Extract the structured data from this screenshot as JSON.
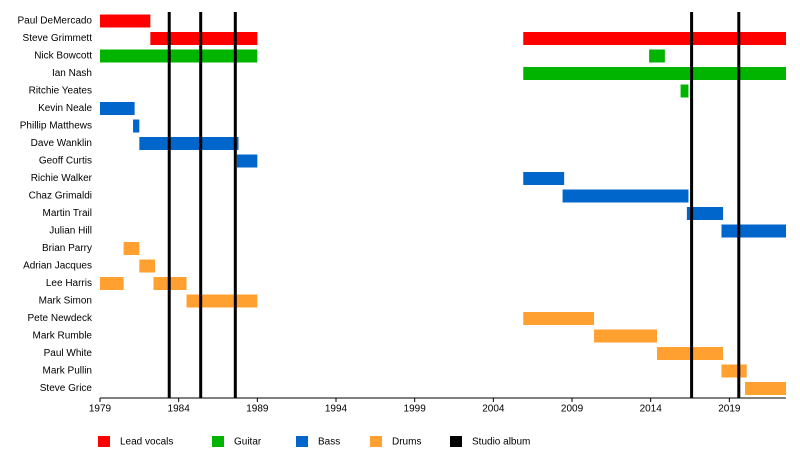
{
  "chart_data": {
    "type": "timeline",
    "categories": [
      "Paul DeMercado",
      "Steve Grimmett",
      "Nick Bowcott",
      "Ian Nash",
      "Ritchie Yeates",
      "Kevin Neale",
      "Phillip Matthews",
      "Dave Wanklin",
      "Geoff Curtis",
      "Richie Walker",
      "Chaz Grimaldi",
      "Martin Trail",
      "Julian Hill",
      "Brian Parry",
      "Adrian Jacques",
      "Lee Harris",
      "Mark Simon",
      "Pete Newdeck",
      "Mark Rumble",
      "Paul White",
      "Mark Pullin",
      "Steve Grice"
    ],
    "series": [
      {
        "name": "Lead vocals",
        "color": "#ff0000",
        "values": [
          [
            [
              1979,
              1982.2
            ]
          ],
          [
            [
              1982.2,
              1989.0
            ],
            [
              2005.9,
              2022.6
            ]
          ],
          null,
          null,
          null,
          null,
          null,
          null,
          null,
          null,
          null,
          null,
          null,
          null,
          null,
          null,
          null,
          null,
          null,
          null,
          null,
          null
        ]
      },
      {
        "name": "Guitar",
        "color": "#00b400",
        "values": [
          null,
          null,
          [
            [
              1979,
              1989.0
            ],
            [
              2013.9,
              2014.9
            ]
          ],
          [
            [
              2005.9,
              2022.6
            ]
          ],
          [
            [
              2015.9,
              2016.4
            ]
          ],
          null,
          null,
          null,
          null,
          null,
          null,
          null,
          null,
          null,
          null,
          null,
          null,
          null,
          null,
          null,
          null,
          null
        ]
      },
      {
        "name": "Bass",
        "color": "#0066cc",
        "values": [
          null,
          null,
          null,
          null,
          null,
          [
            [
              1979,
              1981.2
            ]
          ],
          [
            [
              1981.1,
              1981.5
            ]
          ],
          [
            [
              1981.5,
              1987.8
            ]
          ],
          [
            [
              1987.7,
              1989.0
            ]
          ],
          [
            [
              2005.9,
              2008.5
            ]
          ],
          [
            [
              2008.4,
              2016.4
            ]
          ],
          [
            [
              2016.3,
              2018.6
            ]
          ],
          [
            [
              2018.5,
              2022.6
            ]
          ],
          null,
          null,
          null,
          null,
          null,
          null,
          null,
          null,
          null
        ]
      },
      {
        "name": "Drums",
        "color": "#ffa030",
        "values": [
          null,
          null,
          null,
          null,
          null,
          null,
          null,
          null,
          null,
          null,
          null,
          null,
          null,
          [
            [
              1980.5,
              1981.5
            ]
          ],
          [
            [
              1981.5,
              1982.5
            ]
          ],
          [
            [
              1979,
              1980.5
            ],
            [
              1982.4,
              1984.5
            ]
          ],
          [
            [
              1984.5,
              1989.0
            ]
          ],
          [
            [
              2005.9,
              2010.4
            ]
          ],
          [
            [
              2010.4,
              2014.4
            ]
          ],
          [
            [
              2014.4,
              2018.6
            ]
          ],
          [
            [
              2018.5,
              2020.1
            ]
          ],
          [
            [
              2020.0,
              2022.6
            ]
          ]
        ]
      }
    ],
    "markers": {
      "name": "Studio album",
      "color": "#000000",
      "x": [
        1983.4,
        1985.4,
        1987.6,
        2016.6,
        2019.6
      ]
    },
    "xlim": [
      1979,
      2022.6
    ],
    "xticks": [
      1979,
      1984,
      1989,
      1994,
      1999,
      2004,
      2009,
      2014,
      2019
    ]
  }
}
